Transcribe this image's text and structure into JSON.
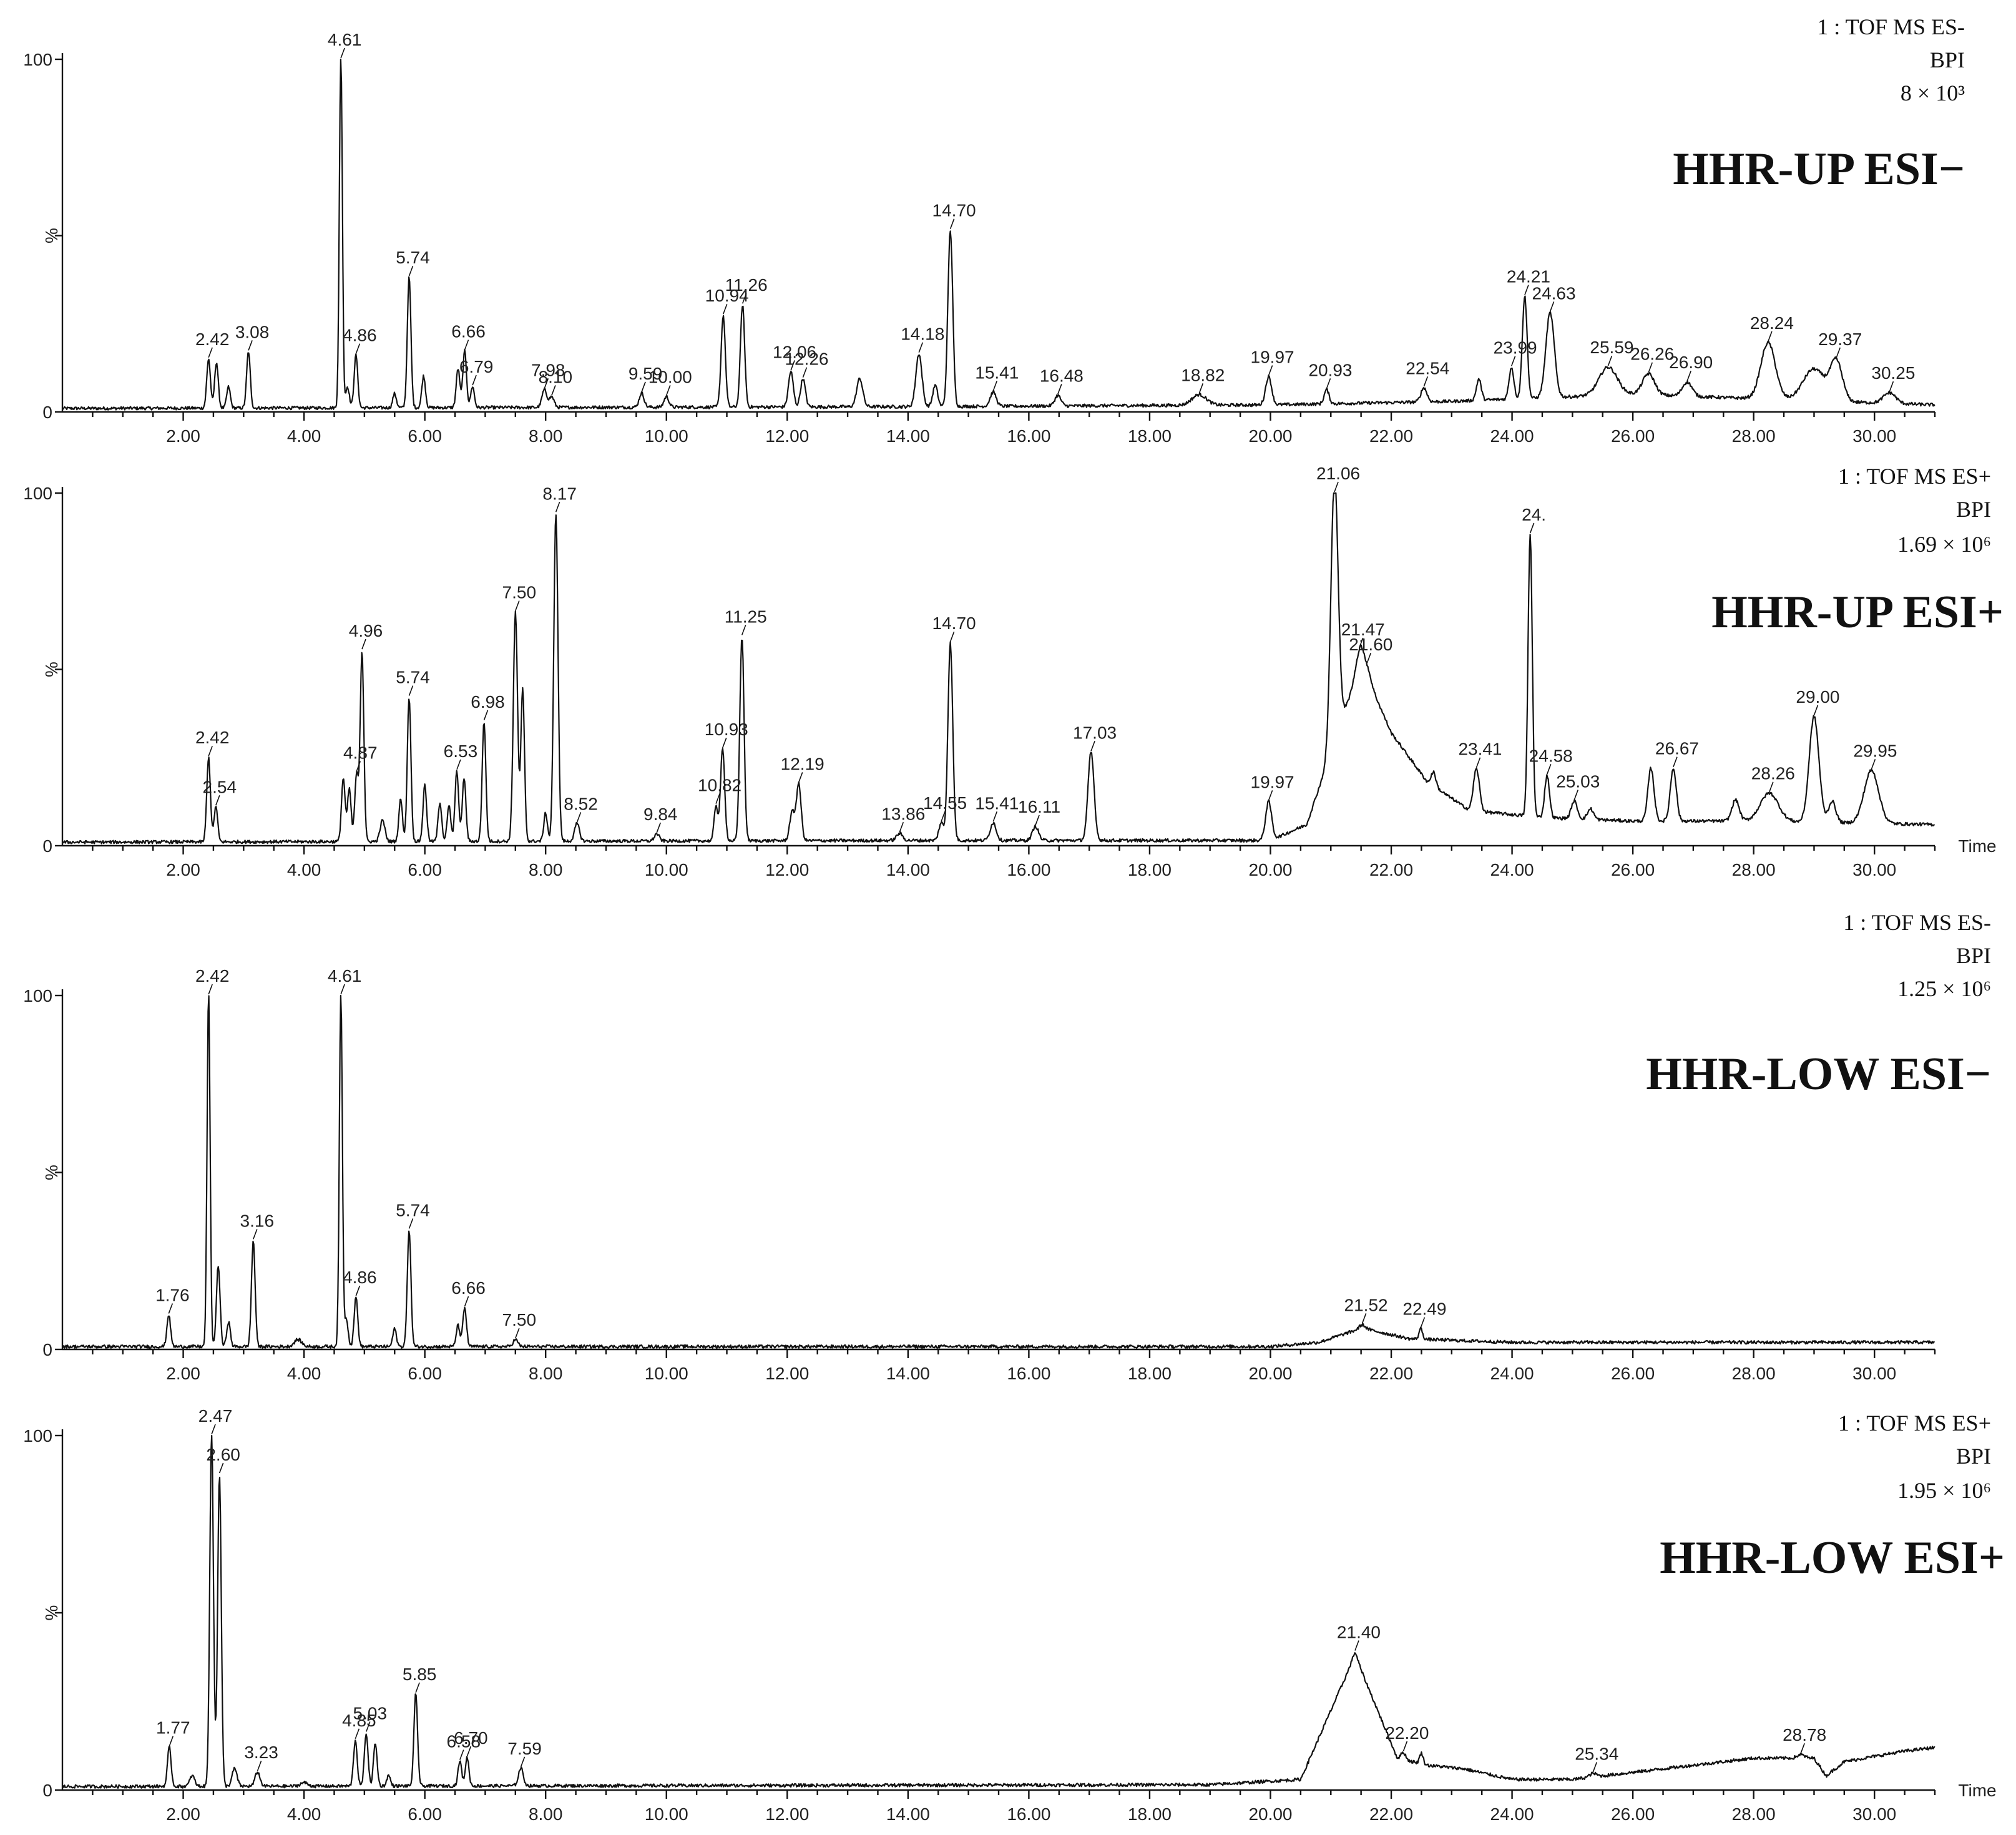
{
  "chart_data": [
    {
      "type": "line",
      "title": "HHR-UP ESI−",
      "info": [
        "1 : TOF MS ES-",
        "BPI",
        "8 × 10³"
      ],
      "xlabel": "",
      "ylabel": "%",
      "xlim": [
        0,
        31
      ],
      "ylim": [
        0,
        100
      ],
      "x_ticks": [
        "2.00",
        "4.00",
        "6.00",
        "8.00",
        "10.00",
        "12.00",
        "14.00",
        "16.00",
        "18.00",
        "20.00",
        "22.00",
        "24.00",
        "26.00",
        "28.00",
        "30.00"
      ],
      "y_ticks": [
        "0",
        "%",
        "100"
      ],
      "baseline": 1,
      "background": [
        [
          0,
          1
        ],
        [
          14,
          1.5
        ],
        [
          20,
          2
        ],
        [
          23,
          3
        ],
        [
          26,
          5
        ],
        [
          31,
          2
        ]
      ],
      "peaks": [
        {
          "rt": 2.42,
          "h": 14,
          "w": 0.03,
          "label": "2.42"
        },
        {
          "rt": 2.55,
          "h": 13,
          "w": 0.03
        },
        {
          "rt": 2.75,
          "h": 6,
          "w": 0.03
        },
        {
          "rt": 3.08,
          "h": 16,
          "w": 0.03,
          "label": "3.08"
        },
        {
          "rt": 4.61,
          "h": 100,
          "w": 0.025,
          "label": "4.61"
        },
        {
          "rt": 4.72,
          "h": 6,
          "w": 0.03
        },
        {
          "rt": 4.86,
          "h": 15,
          "w": 0.03,
          "label": "4.86"
        },
        {
          "rt": 5.5,
          "h": 4,
          "w": 0.03
        },
        {
          "rt": 5.74,
          "h": 37,
          "w": 0.03,
          "label": "5.74"
        },
        {
          "rt": 5.98,
          "h": 9,
          "w": 0.03
        },
        {
          "rt": 6.55,
          "h": 11,
          "w": 0.03
        },
        {
          "rt": 6.66,
          "h": 16,
          "w": 0.03,
          "label": "6.66"
        },
        {
          "rt": 6.79,
          "h": 6,
          "w": 0.03,
          "label": "6.79"
        },
        {
          "rt": 7.98,
          "h": 5,
          "w": 0.04,
          "label": "7.98"
        },
        {
          "rt": 8.1,
          "h": 3,
          "w": 0.04,
          "label": "8.10"
        },
        {
          "rt": 9.59,
          "h": 4,
          "w": 0.04,
          "label": "9.59"
        },
        {
          "rt": 10.0,
          "h": 3,
          "w": 0.04,
          "label": "10.00"
        },
        {
          "rt": 10.94,
          "h": 26,
          "w": 0.035,
          "label": "10.94"
        },
        {
          "rt": 11.26,
          "h": 29,
          "w": 0.035,
          "label": "11.26"
        },
        {
          "rt": 12.06,
          "h": 10,
          "w": 0.04,
          "label": "12.06"
        },
        {
          "rt": 12.26,
          "h": 8,
          "w": 0.04,
          "label": "12.26"
        },
        {
          "rt": 13.2,
          "h": 8,
          "w": 0.05
        },
        {
          "rt": 14.18,
          "h": 15,
          "w": 0.05,
          "label": "14.18"
        },
        {
          "rt": 14.45,
          "h": 6,
          "w": 0.04
        },
        {
          "rt": 14.7,
          "h": 50,
          "w": 0.04,
          "label": "14.70"
        },
        {
          "rt": 15.41,
          "h": 4,
          "w": 0.05,
          "label": "15.41"
        },
        {
          "rt": 16.48,
          "h": 3,
          "w": 0.05,
          "label": "16.48"
        },
        {
          "rt": 18.82,
          "h": 3,
          "w": 0.12,
          "label": "18.82"
        },
        {
          "rt": 19.97,
          "h": 8,
          "w": 0.05,
          "label": "19.97"
        },
        {
          "rt": 20.93,
          "h": 4,
          "w": 0.04,
          "label": "20.93"
        },
        {
          "rt": 22.54,
          "h": 4,
          "w": 0.05,
          "label": "22.54"
        },
        {
          "rt": 23.45,
          "h": 6,
          "w": 0.04
        },
        {
          "rt": 23.99,
          "h": 9,
          "w": 0.04,
          "label": "23.99"
        },
        {
          "rt": 24.21,
          "h": 29,
          "w": 0.04,
          "label": "24.21"
        },
        {
          "rt": 24.63,
          "h": 24,
          "w": 0.07,
          "label": "24.63"
        },
        {
          "rt": 25.59,
          "h": 8,
          "w": 0.15,
          "label": "25.59"
        },
        {
          "rt": 26.26,
          "h": 6,
          "w": 0.1,
          "label": "26.26"
        },
        {
          "rt": 26.9,
          "h": 4,
          "w": 0.08,
          "label": "26.90"
        },
        {
          "rt": 28.24,
          "h": 16,
          "w": 0.12,
          "label": "28.24"
        },
        {
          "rt": 29.0,
          "h": 9,
          "w": 0.18
        },
        {
          "rt": 29.37,
          "h": 11,
          "w": 0.1,
          "label": "29.37"
        },
        {
          "rt": 30.25,
          "h": 3,
          "w": 0.1,
          "label": "30.25"
        }
      ]
    },
    {
      "type": "line",
      "title": "HHR-UP ESI+",
      "info": [
        "1 : TOF MS ES+",
        "BPI",
        "1.69 × 10⁶"
      ],
      "xlabel": "Time",
      "ylabel": "%",
      "xlim": [
        0,
        31
      ],
      "ylim": [
        0,
        100
      ],
      "x_ticks": [
        "2.00",
        "4.00",
        "6.00",
        "8.00",
        "10.00",
        "12.00",
        "14.00",
        "16.00",
        "18.00",
        "20.00",
        "22.00",
        "24.00",
        "26.00",
        "28.00",
        "30.00"
      ],
      "y_ticks": [
        "0",
        "%",
        "100"
      ],
      "baseline": 1,
      "background": [
        [
          0,
          1
        ],
        [
          14,
          1.5
        ],
        [
          20,
          1.5
        ],
        [
          20.6,
          6
        ],
        [
          21.5,
          52
        ],
        [
          22.0,
          32
        ],
        [
          22.6,
          18
        ],
        [
          23.3,
          10
        ],
        [
          24.5,
          8
        ],
        [
          26,
          7
        ],
        [
          28,
          7
        ],
        [
          31,
          6
        ]
      ],
      "peaks": [
        {
          "rt": 2.42,
          "h": 24,
          "w": 0.03,
          "label": "2.42"
        },
        {
          "rt": 2.54,
          "h": 10,
          "w": 0.03,
          "label": "2.54"
        },
        {
          "rt": 4.65,
          "h": 18,
          "w": 0.03
        },
        {
          "rt": 4.75,
          "h": 15,
          "w": 0.03
        },
        {
          "rt": 4.87,
          "h": 19,
          "w": 0.03,
          "label": "4.87"
        },
        {
          "rt": 4.96,
          "h": 54,
          "w": 0.03,
          "label": "4.96"
        },
        {
          "rt": 5.3,
          "h": 6,
          "w": 0.04
        },
        {
          "rt": 5.6,
          "h": 12,
          "w": 0.03
        },
        {
          "rt": 5.74,
          "h": 41,
          "w": 0.03,
          "label": "5.74"
        },
        {
          "rt": 6.0,
          "h": 16,
          "w": 0.03
        },
        {
          "rt": 6.25,
          "h": 11,
          "w": 0.03
        },
        {
          "rt": 6.4,
          "h": 10,
          "w": 0.03
        },
        {
          "rt": 6.53,
          "h": 20,
          "w": 0.03,
          "label": "6.53"
        },
        {
          "rt": 6.65,
          "h": 18,
          "w": 0.03
        },
        {
          "rt": 6.98,
          "h": 34,
          "w": 0.03,
          "label": "6.98"
        },
        {
          "rt": 7.5,
          "h": 65,
          "w": 0.035,
          "label": "7.50"
        },
        {
          "rt": 7.62,
          "h": 43,
          "w": 0.03
        },
        {
          "rt": 8.0,
          "h": 8,
          "w": 0.03
        },
        {
          "rt": 8.17,
          "h": 93,
          "w": 0.035,
          "label": "8.17"
        },
        {
          "rt": 8.52,
          "h": 5,
          "w": 0.04,
          "label": "8.52"
        },
        {
          "rt": 9.84,
          "h": 2,
          "w": 0.04,
          "label": "9.84"
        },
        {
          "rt": 10.82,
          "h": 10,
          "w": 0.03,
          "label": "10.82"
        },
        {
          "rt": 10.93,
          "h": 26,
          "w": 0.035,
          "label": "10.93"
        },
        {
          "rt": 11.25,
          "h": 58,
          "w": 0.035,
          "label": "11.25"
        },
        {
          "rt": 12.08,
          "h": 8,
          "w": 0.04
        },
        {
          "rt": 12.19,
          "h": 16,
          "w": 0.04,
          "label": "12.19"
        },
        {
          "rt": 13.86,
          "h": 2,
          "w": 0.05,
          "label": "13.86"
        },
        {
          "rt": 14.55,
          "h": 5,
          "w": 0.04,
          "label": "14.55"
        },
        {
          "rt": 14.7,
          "h": 56,
          "w": 0.04,
          "label": "14.70"
        },
        {
          "rt": 15.41,
          "h": 5,
          "w": 0.05,
          "label": "15.41"
        },
        {
          "rt": 16.11,
          "h": 4,
          "w": 0.05,
          "label": "16.11"
        },
        {
          "rt": 17.03,
          "h": 25,
          "w": 0.05,
          "label": "17.03"
        },
        {
          "rt": 19.97,
          "h": 11,
          "w": 0.05,
          "label": "19.97"
        },
        {
          "rt": 21.06,
          "h": 75,
          "w": 0.06,
          "label": "21.06"
        },
        {
          "rt": 21.47,
          "h": 5,
          "w": 0.06,
          "label": "21.47"
        },
        {
          "rt": 21.6,
          "h": 3,
          "w": 0.06,
          "label": "21.60"
        },
        {
          "rt": 22.7,
          "h": 4,
          "w": 0.04
        },
        {
          "rt": 23.41,
          "h": 12,
          "w": 0.05,
          "label": "23.41"
        },
        {
          "rt": 24.3,
          "h": 80,
          "w": 0.035,
          "label": "24."
        },
        {
          "rt": 24.58,
          "h": 12,
          "w": 0.04,
          "label": "24.58"
        },
        {
          "rt": 25.03,
          "h": 5,
          "w": 0.05,
          "label": "25.03"
        },
        {
          "rt": 25.3,
          "h": 3,
          "w": 0.05
        },
        {
          "rt": 26.3,
          "h": 15,
          "w": 0.05
        },
        {
          "rt": 26.67,
          "h": 15,
          "w": 0.05,
          "label": "26.67"
        },
        {
          "rt": 27.7,
          "h": 6,
          "w": 0.06
        },
        {
          "rt": 28.26,
          "h": 8,
          "w": 0.15,
          "label": "28.26"
        },
        {
          "rt": 29.0,
          "h": 30,
          "w": 0.08,
          "label": "29.00"
        },
        {
          "rt": 29.3,
          "h": 6,
          "w": 0.06
        },
        {
          "rt": 29.95,
          "h": 15,
          "w": 0.12,
          "label": "29.95"
        }
      ]
    },
    {
      "type": "line",
      "title": "HHR-LOW ESI−",
      "info": [
        "1 : TOF MS ES-",
        "BPI",
        "1.25 × 10⁶"
      ],
      "xlabel": "",
      "ylabel": "%",
      "xlim": [
        0,
        31
      ],
      "ylim": [
        0,
        100
      ],
      "x_ticks": [
        "2.00",
        "4.00",
        "6.00",
        "8.00",
        "10.00",
        "12.00",
        "14.00",
        "16.00",
        "18.00",
        "20.00",
        "22.00",
        "24.00",
        "26.00",
        "28.00",
        "30.00"
      ],
      "y_ticks": [
        "0",
        "%",
        "100"
      ],
      "baseline": 1,
      "background": [
        [
          0,
          0.8
        ],
        [
          20,
          0.8
        ],
        [
          20.8,
          2
        ],
        [
          21.52,
          6
        ],
        [
          22.3,
          3
        ],
        [
          24,
          2
        ],
        [
          31,
          2
        ]
      ],
      "peaks": [
        {
          "rt": 1.76,
          "h": 9,
          "w": 0.03,
          "label": "1.76"
        },
        {
          "rt": 2.42,
          "h": 100,
          "w": 0.025,
          "label": "2.42"
        },
        {
          "rt": 2.58,
          "h": 23,
          "w": 0.03
        },
        {
          "rt": 2.75,
          "h": 7,
          "w": 0.03
        },
        {
          "rt": 3.16,
          "h": 30,
          "w": 0.03,
          "label": "3.16"
        },
        {
          "rt": 3.9,
          "h": 2,
          "w": 0.06
        },
        {
          "rt": 4.61,
          "h": 100,
          "w": 0.025,
          "label": "4.61"
        },
        {
          "rt": 4.7,
          "h": 8,
          "w": 0.03
        },
        {
          "rt": 4.86,
          "h": 14,
          "w": 0.03,
          "label": "4.86"
        },
        {
          "rt": 5.5,
          "h": 5,
          "w": 0.03
        },
        {
          "rt": 5.74,
          "h": 33,
          "w": 0.03,
          "label": "5.74"
        },
        {
          "rt": 6.55,
          "h": 6,
          "w": 0.03
        },
        {
          "rt": 6.66,
          "h": 11,
          "w": 0.03,
          "label": "6.66"
        },
        {
          "rt": 7.5,
          "h": 2,
          "w": 0.04,
          "label": "7.50"
        },
        {
          "rt": 21.52,
          "h": 1,
          "w": 0.05,
          "label": "21.52"
        },
        {
          "rt": 22.49,
          "h": 3,
          "w": 0.03,
          "label": "22.49"
        }
      ]
    },
    {
      "type": "line",
      "title": "HHR-LOW ESI+",
      "info": [
        "1 : TOF MS ES+",
        "BPI",
        "1.95 × 10⁶"
      ],
      "xlabel": "Time",
      "ylabel": "%",
      "xlim": [
        0,
        31
      ],
      "ylim": [
        0,
        100
      ],
      "x_ticks": [
        "2.00",
        "4.00",
        "6.00",
        "8.00",
        "10.00",
        "12.00",
        "14.00",
        "16.00",
        "18.00",
        "20.00",
        "22.00",
        "24.00",
        "26.00",
        "28.00",
        "30.00"
      ],
      "y_ticks": [
        "0",
        "%",
        "100"
      ],
      "baseline": 1,
      "background": [
        [
          0,
          1
        ],
        [
          19,
          1.5
        ],
        [
          20.5,
          3
        ],
        [
          21.4,
          38
        ],
        [
          22.1,
          9
        ],
        [
          22.6,
          7
        ],
        [
          23.2,
          6
        ],
        [
          24,
          3
        ],
        [
          25,
          3
        ],
        [
          26,
          5
        ],
        [
          28,
          9
        ],
        [
          29,
          9
        ],
        [
          29.2,
          4
        ],
        [
          29.5,
          8
        ],
        [
          30.5,
          11
        ],
        [
          31,
          12
        ]
      ],
      "peaks": [
        {
          "rt": 1.77,
          "h": 11,
          "w": 0.03,
          "label": "1.77"
        },
        {
          "rt": 2.15,
          "h": 3,
          "w": 0.04
        },
        {
          "rt": 2.47,
          "h": 100,
          "w": 0.03,
          "label": "2.47"
        },
        {
          "rt": 2.6,
          "h": 88,
          "w": 0.03,
          "label": "2.60"
        },
        {
          "rt": 2.85,
          "h": 5,
          "w": 0.04
        },
        {
          "rt": 3.23,
          "h": 4,
          "w": 0.04,
          "label": "3.23"
        },
        {
          "rt": 4.0,
          "h": 1,
          "w": 0.06
        },
        {
          "rt": 4.85,
          "h": 13,
          "w": 0.03,
          "label": "4.85"
        },
        {
          "rt": 5.03,
          "h": 15,
          "w": 0.03,
          "label": "5.03"
        },
        {
          "rt": 5.18,
          "h": 12,
          "w": 0.03
        },
        {
          "rt": 5.4,
          "h": 3,
          "w": 0.03
        },
        {
          "rt": 5.85,
          "h": 26,
          "w": 0.03,
          "label": "5.85"
        },
        {
          "rt": 6.58,
          "h": 7,
          "w": 0.03,
          "label": "6.58"
        },
        {
          "rt": 6.7,
          "h": 8,
          "w": 0.03,
          "label": "6.70"
        },
        {
          "rt": 7.59,
          "h": 5,
          "w": 0.04,
          "label": "7.59"
        },
        {
          "rt": 21.4,
          "h": 1,
          "w": 0.05,
          "label": "21.40"
        },
        {
          "rt": 22.2,
          "h": 2,
          "w": 0.04,
          "label": "22.20"
        },
        {
          "rt": 22.5,
          "h": 3,
          "w": 0.03
        },
        {
          "rt": 25.34,
          "h": 1,
          "w": 0.06,
          "label": "25.34"
        },
        {
          "rt": 28.78,
          "h": 1,
          "w": 0.06,
          "label": "28.78"
        }
      ]
    }
  ]
}
